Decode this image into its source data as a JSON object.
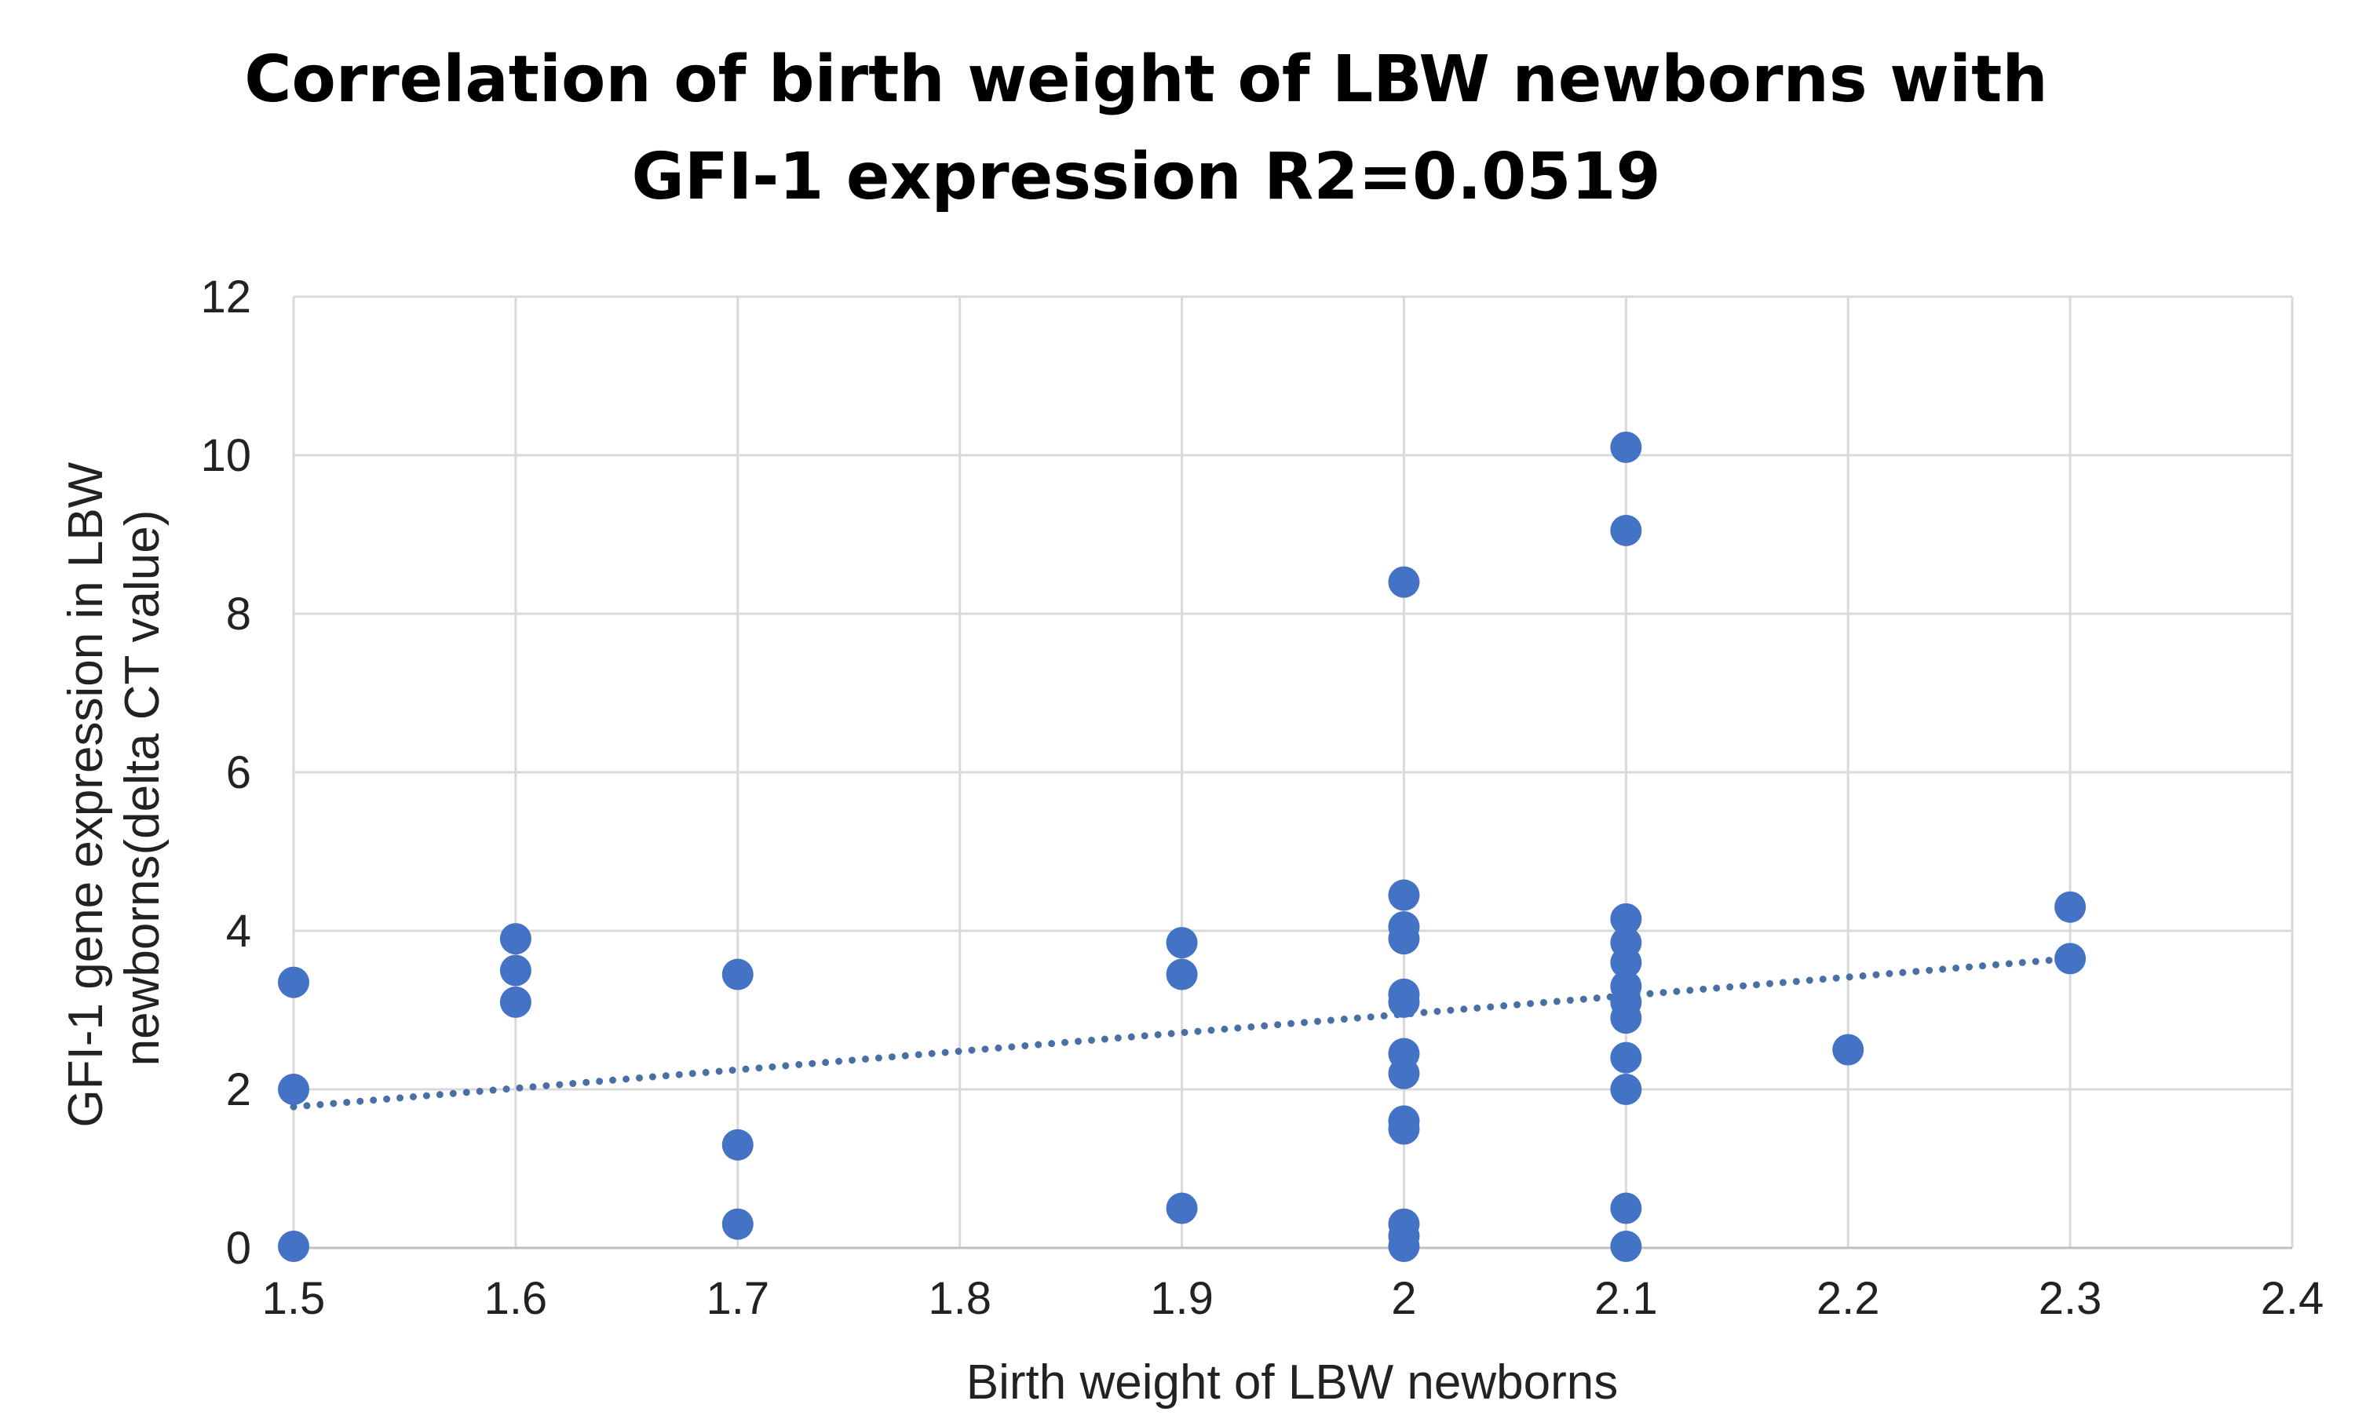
{
  "chart_data": {
    "type": "scatter",
    "title_lines": [
      "Correlation of birth weight of LBW newborns with",
      "GFI-1 expression R2=0.0519"
    ],
    "xlabel": "Birth weight of LBW newborns",
    "ylabel_lines": [
      "GFI-1 gene expression in LBW",
      "newborns(delta CT value)"
    ],
    "xlim": [
      1.5,
      2.4
    ],
    "ylim": [
      0,
      12
    ],
    "x_ticks": [
      1.5,
      1.6,
      1.7,
      1.8,
      1.9,
      2,
      2.1,
      2.2,
      2.3,
      2.4
    ],
    "y_ticks": [
      0,
      2,
      4,
      6,
      8,
      10,
      12
    ],
    "grid": true,
    "marker_color": "#4472C4",
    "trendline": {
      "type": "linear",
      "style": "dotted",
      "color": "#4A6FA5",
      "start": [
        1.5,
        1.78
      ],
      "end": [
        2.3,
        3.65
      ]
    },
    "points": [
      {
        "x": 1.5,
        "y": 3.35
      },
      {
        "x": 1.5,
        "y": 2.0
      },
      {
        "x": 1.5,
        "y": 0.02
      },
      {
        "x": 1.6,
        "y": 3.9
      },
      {
        "x": 1.6,
        "y": 3.5
      },
      {
        "x": 1.6,
        "y": 3.1
      },
      {
        "x": 1.7,
        "y": 3.45
      },
      {
        "x": 1.7,
        "y": 1.3
      },
      {
        "x": 1.7,
        "y": 0.3
      },
      {
        "x": 1.9,
        "y": 3.85
      },
      {
        "x": 1.9,
        "y": 3.45
      },
      {
        "x": 1.9,
        "y": 0.5
      },
      {
        "x": 2.0,
        "y": 8.4
      },
      {
        "x": 2.0,
        "y": 4.45
      },
      {
        "x": 2.0,
        "y": 4.05
      },
      {
        "x": 2.0,
        "y": 3.9
      },
      {
        "x": 2.0,
        "y": 3.2
      },
      {
        "x": 2.0,
        "y": 3.1
      },
      {
        "x": 2.0,
        "y": 2.45
      },
      {
        "x": 2.0,
        "y": 2.2
      },
      {
        "x": 2.0,
        "y": 1.6
      },
      {
        "x": 2.0,
        "y": 1.5
      },
      {
        "x": 2.0,
        "y": 0.3
      },
      {
        "x": 2.0,
        "y": 0.15
      },
      {
        "x": 2.0,
        "y": 0.02
      },
      {
        "x": 2.1,
        "y": 10.1
      },
      {
        "x": 2.1,
        "y": 9.05
      },
      {
        "x": 2.1,
        "y": 4.15
      },
      {
        "x": 2.1,
        "y": 3.85
      },
      {
        "x": 2.1,
        "y": 3.6
      },
      {
        "x": 2.1,
        "y": 3.3
      },
      {
        "x": 2.1,
        "y": 3.1
      },
      {
        "x": 2.1,
        "y": 2.9
      },
      {
        "x": 2.1,
        "y": 2.4
      },
      {
        "x": 2.1,
        "y": 2.0
      },
      {
        "x": 2.1,
        "y": 0.5
      },
      {
        "x": 2.1,
        "y": 0.02
      },
      {
        "x": 2.2,
        "y": 2.5
      },
      {
        "x": 2.3,
        "y": 4.3
      },
      {
        "x": 2.3,
        "y": 3.65
      }
    ]
  }
}
